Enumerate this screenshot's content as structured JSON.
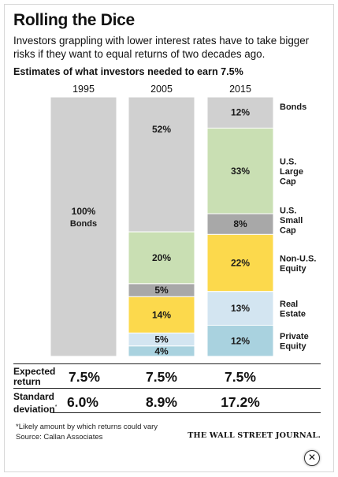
{
  "title": "Rolling the Dice",
  "subtitle": "Investors grappling with lower interest rates have to take bigger risks if they want to equal returns of two decades ago.",
  "colors": {
    "Bonds": "#d0d0d0",
    "U.S. Large Cap": "#c9dfb3",
    "U.S. Small Cap": "#a8a8a8",
    "Non-U.S. Equity": "#fcd94c",
    "Real Estate": "#d3e5f1",
    "Private Equity": "#a9d2df"
  },
  "chart_data": {
    "type": "bar",
    "stacked": true,
    "title": "Estimates of what investors needed to earn 7.5%",
    "categories": [
      "1995",
      "2005",
      "2015"
    ],
    "series": [
      {
        "name": "Bonds",
        "values": [
          100,
          52,
          12
        ]
      },
      {
        "name": "U.S. Large Cap",
        "values": [
          0,
          20,
          33
        ]
      },
      {
        "name": "U.S. Small Cap",
        "values": [
          0,
          5,
          8
        ]
      },
      {
        "name": "Non-U.S. Equity",
        "values": [
          0,
          14,
          22
        ]
      },
      {
        "name": "Real Estate",
        "values": [
          0,
          5,
          13
        ]
      },
      {
        "name": "Private Equity",
        "values": [
          0,
          4,
          12
        ]
      }
    ],
    "value_labels": [
      [
        "100%",
        "",
        "",
        "",
        "",
        ""
      ],
      [
        "52%",
        "20%",
        "5%",
        "14%",
        "5%",
        "4%"
      ],
      [
        "12%",
        "33%",
        "8%",
        "22%",
        "13%",
        "12%"
      ]
    ],
    "bar_1995_sublabel": "Bonds",
    "legend_labels": [
      "Bonds",
      "U.S.\nLarge\nCap",
      "U.S.\nSmall\nCap",
      "Non-U.S.\nEquity",
      "Real\nEstate",
      "Private\nEquity"
    ],
    "legend": "right",
    "ylim": [
      0,
      100
    ],
    "grid": false
  },
  "stats": {
    "expected_label": "Expected\nreturn",
    "expected_return": [
      "7.5%",
      "7.5%",
      "7.5%"
    ],
    "std_label": "Standard\ndeviation",
    "std_marker": "*",
    "standard_deviation": [
      "6.0%",
      "8.9%",
      "17.2%"
    ]
  },
  "footnote": "*Likely amount by which returns could vary",
  "source": "Source: Callan Associates",
  "brand": "THE WALL STREET JOURNAL.",
  "close_glyph": "✕"
}
